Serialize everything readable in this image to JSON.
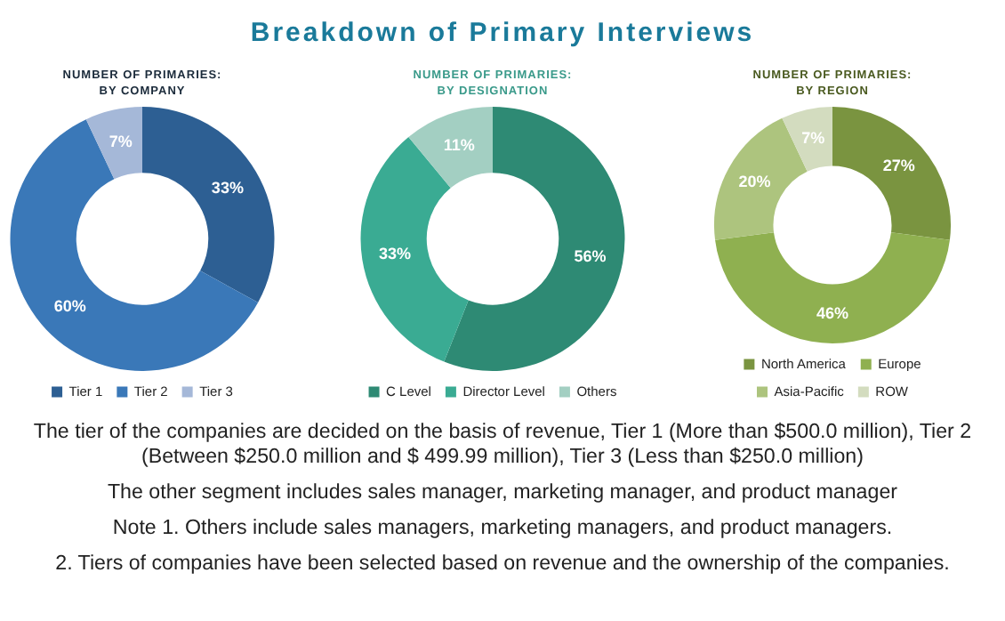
{
  "chart_data": [
    {
      "type": "other",
      "title": "Breakdown of Primary Interviews"
    },
    {
      "type": "donut",
      "title": "NUMBER OF PRIMARIES: BY COMPANY",
      "categories": [
        "Tier 1",
        "Tier 2",
        "Tier 3"
      ],
      "values": [
        33,
        60,
        7
      ],
      "colors": [
        "#2d5f93",
        "#3a78b8",
        "#a5b8d8"
      ],
      "value_labels": [
        "33%",
        "60%",
        "7%"
      ],
      "legend": "bottom"
    },
    {
      "type": "donut",
      "title": "NUMBER OF PRIMARIES: BY DESIGNATION",
      "categories": [
        "C Level",
        "Director Level",
        "Others"
      ],
      "values": [
        56,
        33,
        11
      ],
      "colors": [
        "#2e8a74",
        "#3aab93",
        "#a3cfc2"
      ],
      "value_labels": [
        "56%",
        "33%",
        "11%"
      ],
      "legend": "bottom"
    },
    {
      "type": "donut",
      "title": "NUMBER OF PRIMARIES: BY REGION",
      "categories": [
        "North America",
        "Europe",
        "Asia-Pacific",
        "ROW"
      ],
      "values": [
        27,
        46,
        20,
        7
      ],
      "colors": [
        "#7a9440",
        "#8fb050",
        "#adc47e",
        "#d3dcbf"
      ],
      "value_labels": [
        "27%",
        "46%",
        "20%",
        "7%"
      ],
      "legend": "bottom"
    },
    {
      "type": "other",
      "annotations": [
        "The tier of the companies are decided on the basis of revenue, Tier 1 (More than $500.0 million), Tier 2 (Between $250.0 million and $ 499.99 million), Tier 3 (Less than $250.0 million)",
        "The other segment includes sales manager, marketing manager, and product manager",
        "Note 1. Others include sales managers, marketing managers, and product managers.",
        "2. Tiers of companies have been selected based on revenue and the ownership of the companies."
      ]
    }
  ]
}
